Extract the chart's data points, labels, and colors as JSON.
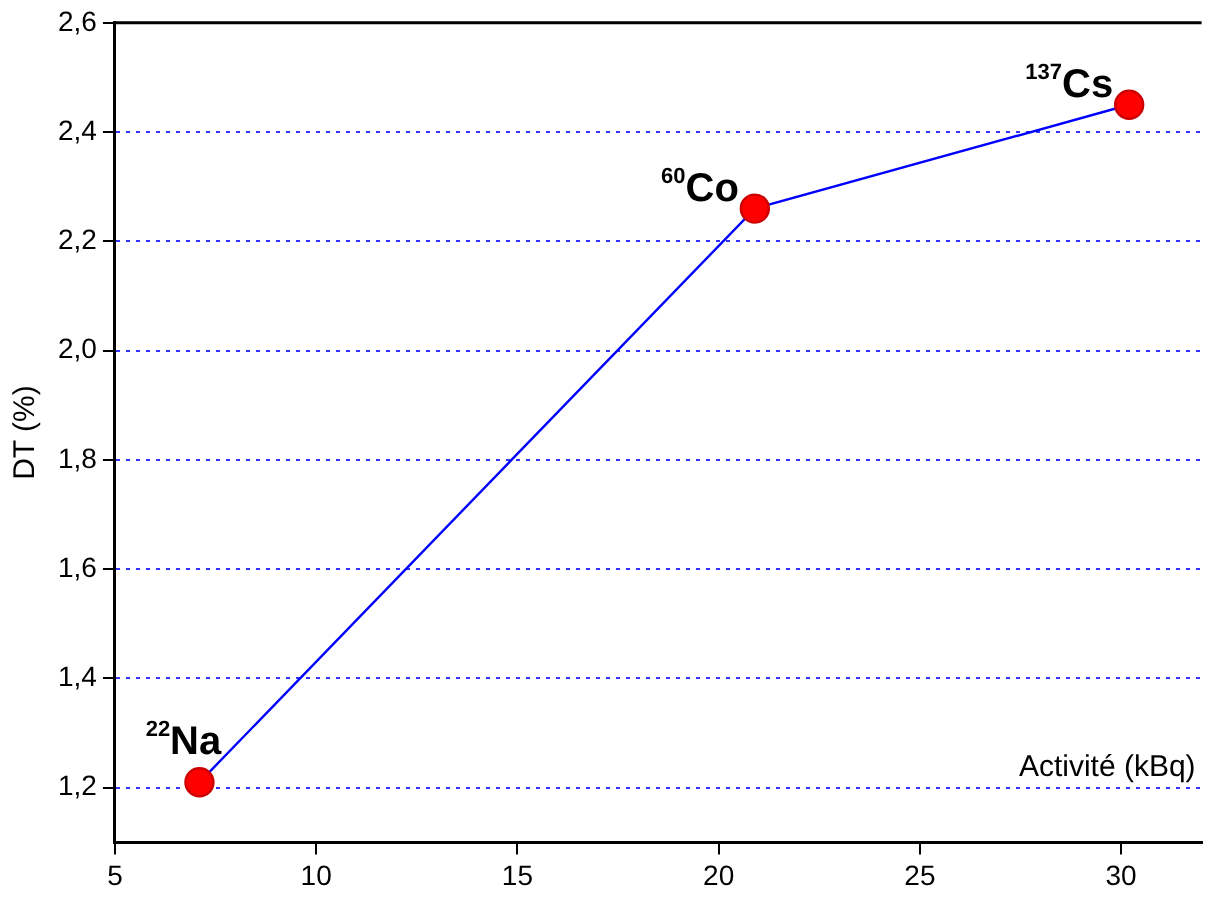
{
  "chart_data": {
    "type": "line",
    "xlabel": "Activité (kBq)",
    "ylabel": "DT (%)",
    "x": [
      7.1,
      20.9,
      30.2
    ],
    "series": [
      {
        "color": "#0000ff",
        "values": [
          1.21,
          2.26,
          2.45
        ]
      }
    ],
    "xlim": [
      5,
      32
    ],
    "xticks": [
      5,
      10,
      15,
      20,
      25,
      30
    ],
    "ylim": [
      1.1,
      2.6
    ],
    "yticks": [
      {
        "value": 1.2,
        "label": "1,2"
      },
      {
        "value": 1.4,
        "label": "1,4"
      },
      {
        "value": 1.6,
        "label": "1,6"
      },
      {
        "value": 1.8,
        "label": "1,8"
      },
      {
        "value": 2.0,
        "label": "2,0"
      },
      {
        "value": 2.2,
        "label": "2,2"
      },
      {
        "value": 2.4,
        "label": "2,4"
      },
      {
        "value": 2.6,
        "label": "2,6"
      }
    ],
    "grid": "y",
    "marker": "circle",
    "line_style": "solid",
    "legend": false,
    "annotations": [
      {
        "text": "$^{22}$Na",
        "x": 7.1,
        "y": 1.21
      },
      {
        "text": "$^{60}$Co",
        "x": 20.9,
        "y": 2.26
      },
      {
        "text": "$^{137}$Cs",
        "x": 30.2,
        "y": 2.45
      }
    ]
  }
}
